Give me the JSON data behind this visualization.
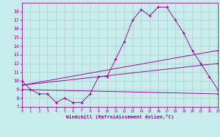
{
  "line1_x": [
    0,
    1,
    2,
    3,
    4,
    5,
    6,
    7,
    8,
    9,
    10,
    11,
    12,
    13,
    14,
    15,
    16,
    17,
    18,
    19,
    20,
    21,
    22,
    23
  ],
  "line1_y": [
    10,
    9,
    8.5,
    8.5,
    7.5,
    8,
    7.5,
    7.5,
    8.5,
    10.5,
    10.5,
    12.5,
    14.5,
    17,
    18.2,
    17.5,
    18.5,
    18.5,
    17,
    15.5,
    13.5,
    12,
    10.5,
    9
  ],
  "line2_x": [
    0,
    23
  ],
  "line2_y": [
    9,
    8.5
  ],
  "line3_x": [
    0,
    23
  ],
  "line3_y": [
    9.5,
    13.5
  ],
  "line4_x": [
    0,
    23
  ],
  "line4_y": [
    9.5,
    12
  ],
  "color": "#990099",
  "bg_color": "#c8ecec",
  "grid_color": "#b0c8c8",
  "xlabel": "Windchill (Refroidissement éolien,°C)",
  "ylim": [
    7,
    19
  ],
  "xlim": [
    0,
    23
  ],
  "yticks": [
    7,
    8,
    9,
    10,
    11,
    12,
    13,
    14,
    15,
    16,
    17,
    18
  ],
  "xticks": [
    0,
    1,
    2,
    3,
    4,
    5,
    6,
    7,
    8,
    9,
    10,
    11,
    12,
    13,
    14,
    15,
    16,
    17,
    18,
    19,
    20,
    21,
    22,
    23
  ]
}
